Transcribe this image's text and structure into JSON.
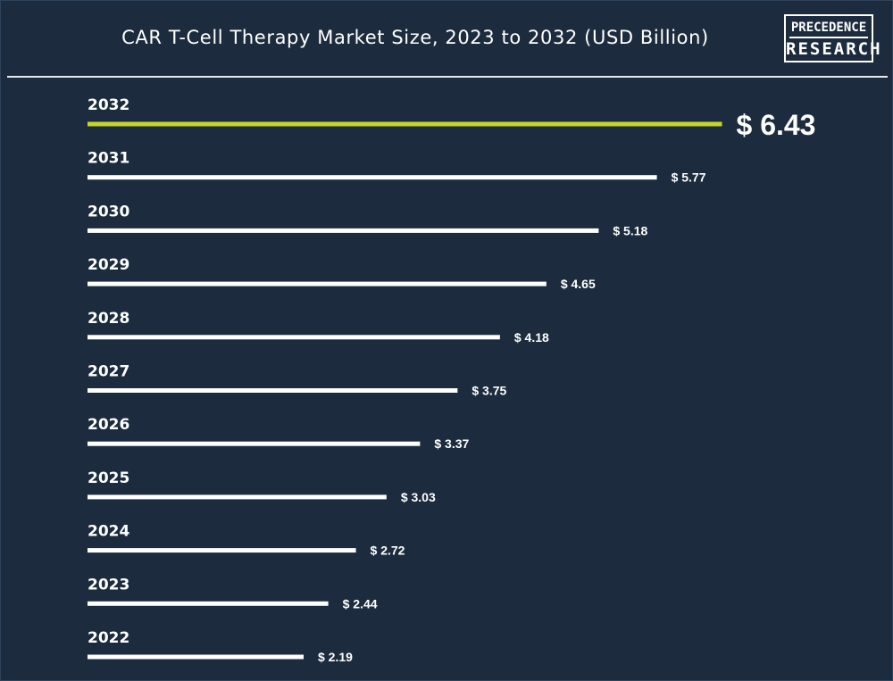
{
  "header": {
    "title": "CAR T-Cell Therapy Market Size, 2023 to 2032 (USD Billion)"
  },
  "logo": {
    "line1": "PRECEDENCE",
    "line2": "RESEARCH"
  },
  "colors": {
    "background": "#1c2b3d",
    "bar": "#ffffff",
    "highlight_bar": "#c8d62a",
    "text": "#ffffff"
  },
  "chart_data": {
    "type": "bar",
    "orientation": "horizontal",
    "title": "CAR T-Cell Therapy Market Size, 2023 to 2032 (USD Billion)",
    "categories": [
      "2032",
      "2031",
      "2030",
      "2029",
      "2028",
      "2027",
      "2026",
      "2025",
      "2024",
      "2023",
      "2022"
    ],
    "values": [
      6.43,
      5.77,
      5.18,
      4.65,
      4.18,
      3.75,
      3.37,
      3.03,
      2.72,
      2.44,
      2.19
    ],
    "value_labels": [
      "$ 6.43",
      "$ 5.77",
      "$ 5.18",
      "$ 4.65",
      "$ 4.18",
      "$ 3.75",
      "$ 3.37",
      "$ 3.03",
      "$ 2.72",
      "$ 2.44",
      "$ 2.19"
    ],
    "highlight_category": "2032",
    "xlabel": "",
    "ylabel": "",
    "grid": false,
    "legend": "none"
  }
}
